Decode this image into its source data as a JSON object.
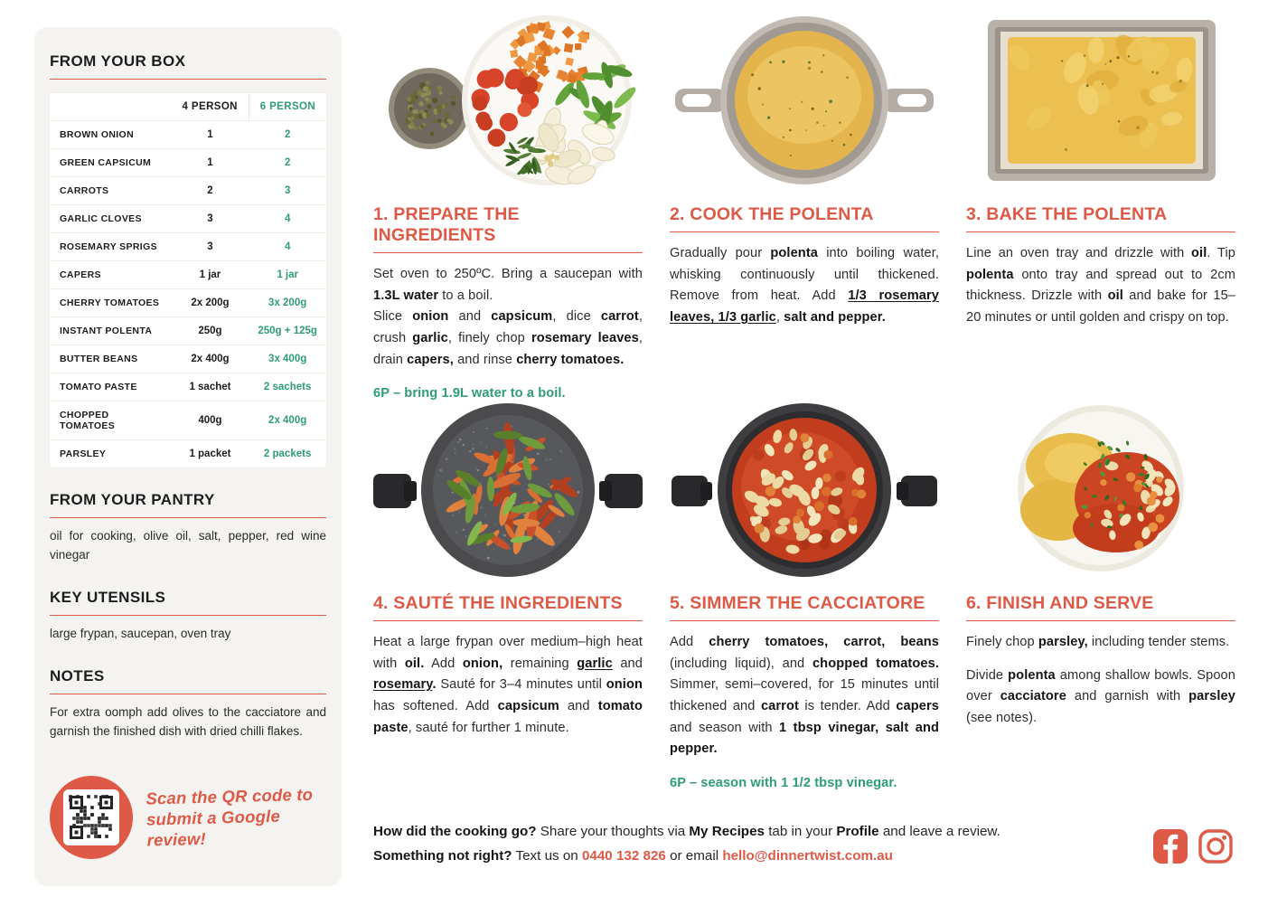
{
  "colors": {
    "accent": "#DE5A47",
    "green": "#2F9C78"
  },
  "sidebar": {
    "box": {
      "title": "FROM YOUR BOX",
      "table": {
        "headers": [
          "",
          "4 PERSON",
          "6 PERSON"
        ],
        "rows": [
          {
            "label": "BROWN ONION",
            "p4": "1",
            "p6": "2"
          },
          {
            "label": "GREEN CAPSICUM",
            "p4": "1",
            "p6": "2"
          },
          {
            "label": "CARROTS",
            "p4": "2",
            "p6": "3"
          },
          {
            "label": "GARLIC CLOVES",
            "p4": "3",
            "p6": "4"
          },
          {
            "label": "ROSEMARY SPRIGS",
            "p4": "3",
            "p6": "4"
          },
          {
            "label": "CAPERS",
            "p4": "1 jar",
            "p6": "1 jar"
          },
          {
            "label": "CHERRY TOMATOES",
            "p4": "2x 200g",
            "p6": "3x 200g"
          },
          {
            "label": "INSTANT POLENTA",
            "p4": "250g",
            "p6": "250g + 125g"
          },
          {
            "label": "BUTTER BEANS",
            "p4": "2x 400g",
            "p6": "3x 400g"
          },
          {
            "label": "TOMATO PASTE",
            "p4": "1 sachet",
            "p6": "2 sachets"
          },
          {
            "label": "CHOPPED TOMATOES",
            "p4": "400g",
            "p6": "2x 400g"
          },
          {
            "label": "PARSLEY",
            "p4": "1 packet",
            "p6": "2 packets"
          }
        ]
      }
    },
    "pantry": {
      "title": "FROM YOUR PANTRY",
      "text": "oil for cooking, olive oil, salt, pepper, red wine vinegar"
    },
    "utensils": {
      "title": "KEY UTENSILS",
      "text": "large frypan, saucepan, oven tray"
    },
    "notes": {
      "title": "NOTES",
      "text": "For extra oomph add olives to the cacciatore and garnish the finished dish with dried chilli flakes."
    },
    "review": {
      "text": "Scan the QR code to submit a Google review!",
      "icon": "qr-code"
    }
  },
  "steps": [
    {
      "title": "1. PREPARE THE INGREDIENTS",
      "photo": "ingredients-plate-photo",
      "paragraphs": [
        {
          "segments": [
            {
              "t": "Set oven to 250ºC. Bring a saucepan with "
            },
            {
              "t": "1.3L water",
              "b": true
            },
            {
              "t": " to a boil."
            }
          ]
        },
        {
          "segments": [
            {
              "t": "Slice "
            },
            {
              "t": "onion",
              "b": true
            },
            {
              "t": " and "
            },
            {
              "t": "capsicum",
              "b": true
            },
            {
              "t": ", dice "
            },
            {
              "t": "carrot",
              "b": true
            },
            {
              "t": ", crush "
            },
            {
              "t": "garlic",
              "b": true
            },
            {
              "t": ", finely chop "
            },
            {
              "t": "rosemary leaves",
              "b": true
            },
            {
              "t": ", drain "
            },
            {
              "t": "capers,",
              "b": true
            },
            {
              "t": " and rinse "
            },
            {
              "t": "cherry tomatoes.",
              "b": true
            }
          ]
        },
        {
          "cls": "sixp",
          "segments": [
            {
              "t": "6P – bring 1.9L water to a boil."
            }
          ]
        }
      ]
    },
    {
      "title": "2. COOK THE POLENTA",
      "photo": "polenta-pot-photo",
      "paragraphs": [
        {
          "segments": [
            {
              "t": "Gradually pour "
            },
            {
              "t": "polenta",
              "b": true
            },
            {
              "t": " into boiling water, whisking continuously until thickened. Remove from heat. Add "
            },
            {
              "t": "1/3 rosemary leaves, 1/3 garlic",
              "b": true,
              "u": true
            },
            {
              "t": ", "
            },
            {
              "t": "salt and pepper.",
              "b": true
            }
          ]
        }
      ]
    },
    {
      "title": "3. BAKE THE POLENTA",
      "photo": "polenta-tray-photo",
      "paragraphs": [
        {
          "segments": [
            {
              "t": "Line an oven tray and drizzle with "
            },
            {
              "t": "oil",
              "b": true
            },
            {
              "t": ". Tip "
            },
            {
              "t": "polenta",
              "b": true
            },
            {
              "t": " onto tray and spread out to 2cm thickness. Drizzle with "
            },
            {
              "t": "oil",
              "b": true
            },
            {
              "t": " and bake for 15–20 minutes or until golden and crispy on top."
            }
          ]
        }
      ]
    },
    {
      "title": "4. SAUTÉ THE INGREDIENTS",
      "photo": "saute-frypan-photo",
      "paragraphs": [
        {
          "segments": [
            {
              "t": "Heat a large frypan over medium–high heat with "
            },
            {
              "t": "oil.",
              "b": true
            },
            {
              "t": " Add "
            },
            {
              "t": "onion,",
              "b": true
            },
            {
              "t": " remaining "
            },
            {
              "t": "garlic",
              "b": true,
              "u": true
            },
            {
              "t": " and "
            },
            {
              "t": "rosemary",
              "b": true,
              "u": true
            },
            {
              "t": ".",
              "b": true
            },
            {
              "t": " Sauté for 3–4 minutes until "
            },
            {
              "t": "onion",
              "b": true
            },
            {
              "t": " has softened. Add "
            },
            {
              "t": "capsicum",
              "b": true
            },
            {
              "t": " and "
            },
            {
              "t": "tomato paste",
              "b": true
            },
            {
              "t": ", sauté for further 1 minute."
            }
          ]
        }
      ]
    },
    {
      "title": "5. SIMMER THE CACCIATORE",
      "photo": "cacciatore-pot-photo",
      "paragraphs": [
        {
          "segments": [
            {
              "t": "Add "
            },
            {
              "t": "cherry tomatoes, carrot, beans",
              "b": true
            },
            {
              "t": " (including liquid), and "
            },
            {
              "t": "chopped tomatoes.",
              "b": true
            },
            {
              "t": " Simmer, semi–covered, for 15 minutes until thickened and "
            },
            {
              "t": "carrot",
              "b": true
            },
            {
              "t": " is tender. Add "
            },
            {
              "t": "capers",
              "b": true
            },
            {
              "t": " and season with "
            },
            {
              "t": "1 tbsp vinegar, salt and pepper.",
              "b": true
            }
          ]
        },
        {
          "cls": "sixp",
          "segments": [
            {
              "t": "6P – season with 1 1/2 tbsp vinegar."
            }
          ]
        }
      ]
    },
    {
      "title": "6. FINISH AND SERVE",
      "photo": "plated-dish-photo",
      "paragraphs": [
        {
          "segments": [
            {
              "t": "Finely chop "
            },
            {
              "t": "parsley,",
              "b": true
            },
            {
              "t": " including tender stems."
            }
          ]
        },
        {
          "cls": "spaced",
          "segments": [
            {
              "t": "Divide "
            },
            {
              "t": "polenta",
              "b": true
            },
            {
              "t": " among shallow bowls. Spoon over "
            },
            {
              "t": "cacciatore",
              "b": true
            },
            {
              "t": " and garnish with "
            },
            {
              "t": "parsley",
              "b": true
            },
            {
              "t": " (see notes)."
            }
          ]
        }
      ]
    }
  ],
  "footer": {
    "line1": [
      {
        "t": "How did the cooking go?",
        "b": true
      },
      {
        "t": " Share your thoughts via "
      },
      {
        "t": "My Recipes",
        "b": true
      },
      {
        "t": " tab in your "
      },
      {
        "t": "Profile",
        "b": true
      },
      {
        "t": " and leave a review."
      }
    ],
    "line2": [
      {
        "t": "Something not right?",
        "b": true
      },
      {
        "t": " Text us on "
      },
      {
        "t": "0440 132 826",
        "b": true,
        "accent": true,
        "name": "phone-link",
        "link": true
      },
      {
        "t": " or email "
      },
      {
        "t": "hello@dinnertwist.com.au",
        "b": true,
        "accent": true,
        "name": "email-link",
        "link": true
      }
    ],
    "social": [
      "facebook-icon",
      "instagram-icon"
    ]
  }
}
